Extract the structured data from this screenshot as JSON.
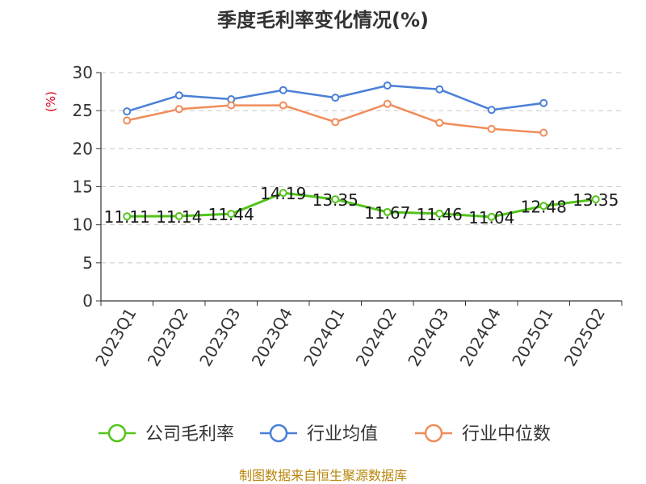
{
  "chart_data": {
    "type": "line",
    "title": "季度毛利率变化情况(%)",
    "ylabel": "(%)",
    "ylim": [
      0,
      30
    ],
    "yticks": [
      0,
      5,
      10,
      15,
      20,
      25,
      30
    ],
    "grid": true,
    "legend_position": "bottom",
    "categories": [
      "2023Q1",
      "2023Q2",
      "2023Q3",
      "2023Q4",
      "2024Q1",
      "2024Q2",
      "2024Q3",
      "2024Q4",
      "2025Q1",
      "2025Q2"
    ],
    "series": [
      {
        "name": "公司毛利率",
        "color": "#52c41a",
        "values": [
          11.11,
          11.14,
          11.44,
          14.19,
          13.35,
          11.67,
          11.46,
          11.04,
          12.48,
          13.35
        ],
        "labels": [
          "11.11",
          "11.14",
          "11.44",
          "14.19",
          "13.35",
          "11.67",
          "11.46",
          "11.04",
          "12.48",
          "13.35"
        ]
      },
      {
        "name": "行业均值",
        "color": "#4a7fd8",
        "values": [
          24.9,
          27.0,
          26.5,
          27.7,
          26.7,
          28.3,
          27.8,
          25.1,
          26.0,
          null
        ]
      },
      {
        "name": "行业中位数",
        "color": "#f08c5a",
        "values": [
          23.7,
          25.2,
          25.7,
          25.7,
          23.5,
          25.9,
          23.4,
          22.6,
          22.1,
          null
        ]
      }
    ],
    "source": "制图数据来自恒生聚源数据库"
  }
}
